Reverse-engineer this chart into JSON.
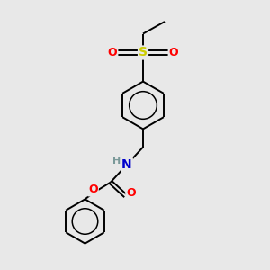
{
  "background_color": "#e8e8e8",
  "bond_color": "#000000",
  "atom_colors": {
    "O": "#ff0000",
    "S": "#cccc00",
    "N": "#0000cc",
    "H": "#7a9999",
    "C": "#000000"
  },
  "figsize": [
    3.0,
    3.0
  ],
  "dpi": 100,
  "xlim": [
    0,
    10
  ],
  "ylim": [
    0,
    10
  ]
}
